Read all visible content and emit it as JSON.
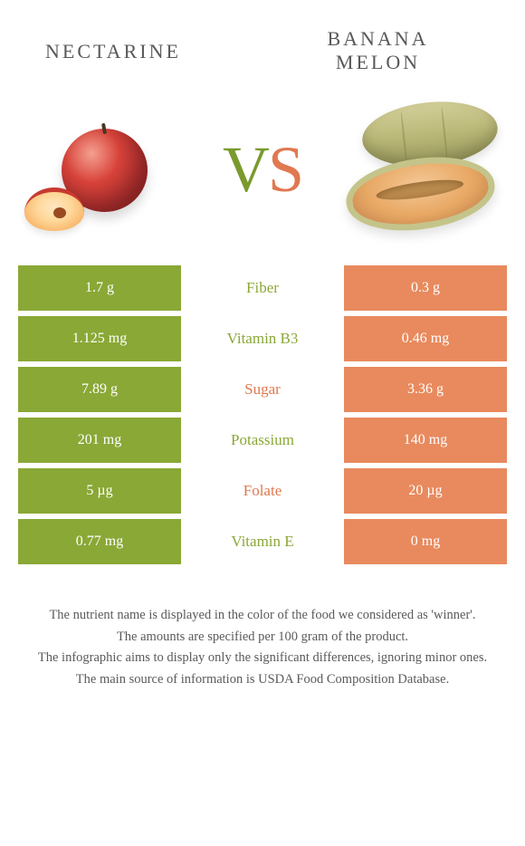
{
  "foods": {
    "left": {
      "name": "NECTARINE"
    },
    "right": {
      "name_line1": "BANANA",
      "name_line2": "MELON"
    }
  },
  "vs": {
    "v": "V",
    "s": "S"
  },
  "colors": {
    "left_bar": "#8aa836",
    "right_bar": "#e88a5e",
    "label_left_win": "#8aa836",
    "label_right_win": "#e07850"
  },
  "rows": [
    {
      "left": "1.7 g",
      "label": "Fiber",
      "right": "0.3 g",
      "winner": "left"
    },
    {
      "left": "1.125 mg",
      "label": "Vitamin B3",
      "right": "0.46 mg",
      "winner": "left"
    },
    {
      "left": "7.89 g",
      "label": "Sugar",
      "right": "3.36 g",
      "winner": "right"
    },
    {
      "left": "201 mg",
      "label": "Potassium",
      "right": "140 mg",
      "winner": "left"
    },
    {
      "left": "5 µg",
      "label": "Folate",
      "right": "20 µg",
      "winner": "right"
    },
    {
      "left": "0.77 mg",
      "label": "Vitamin E",
      "right": "0 mg",
      "winner": "left"
    }
  ],
  "footer": {
    "l1": "The nutrient name is displayed in the color of the food we considered as 'winner'.",
    "l2": "The amounts are specified per 100 gram of the product.",
    "l3": "The infographic aims to display only the significant differences, ignoring minor ones.",
    "l4": "The main source of information is USDA Food Composition Database."
  }
}
